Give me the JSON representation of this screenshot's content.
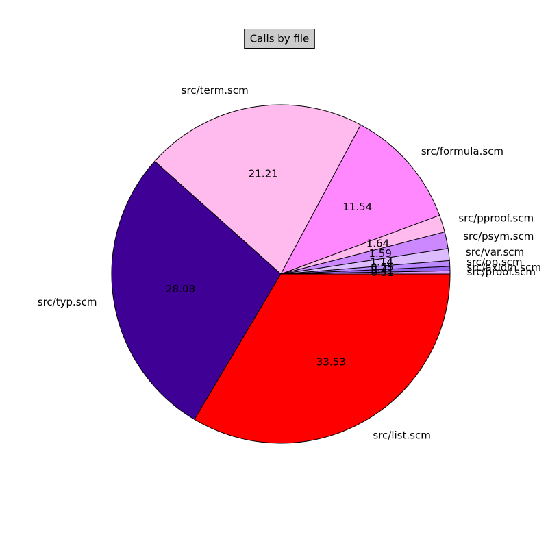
{
  "chart_data": {
    "type": "pie",
    "title": "Calls by file",
    "categories": [
      "src/proof.scm",
      "src/axiom.scm",
      "src/pp.scm",
      "src/var.scm",
      "src/psym.scm",
      "src/pproof.scm",
      "src/formula.scm",
      "src/term.scm",
      "src/typ.scm",
      "src/list.scm"
    ],
    "values": [
      0.31,
      0.41,
      0.55,
      1.14,
      1.59,
      1.64,
      11.54,
      21.21,
      28.08,
      33.53
    ],
    "colors": [
      "#dd99ff",
      "#9966ee",
      "#bb88ff",
      "#ddbbff",
      "#cc88ff",
      "#ffbbee",
      "#ff88ff",
      "#ffbbee",
      "#3f0096",
      "#ff0000"
    ]
  }
}
